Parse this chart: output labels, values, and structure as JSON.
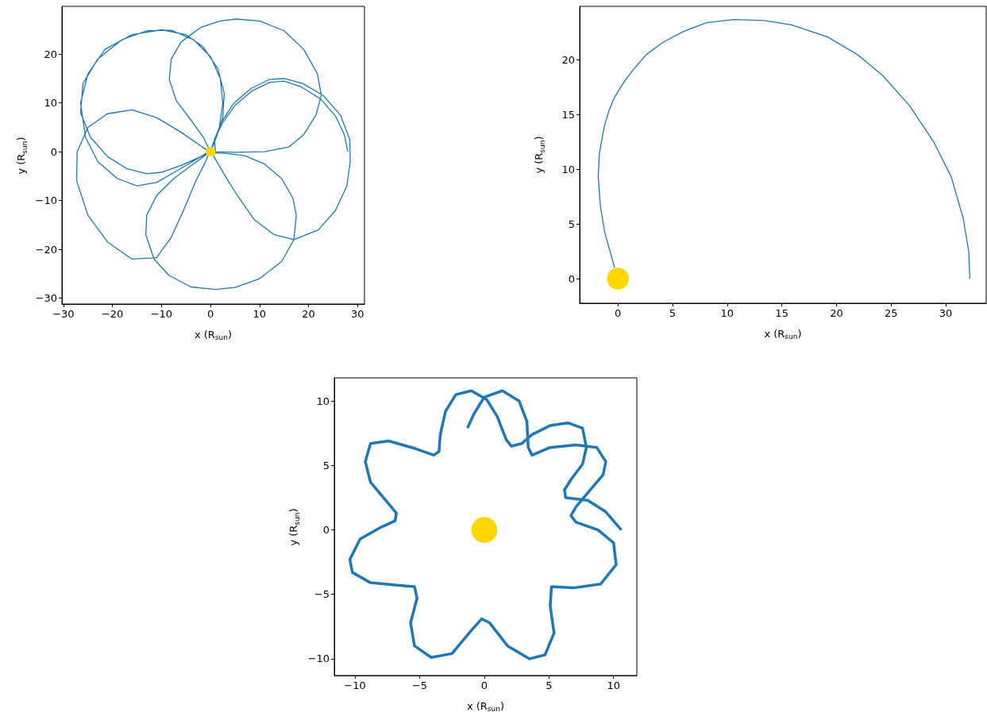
{
  "chart_data": [
    {
      "type": "line",
      "xlabel": "x (R$_{sun}$)",
      "ylabel": "y (R$_{sun}$)",
      "xlim": [
        -30.3,
        31.4
      ],
      "ylim": [
        -31.2,
        29.8
      ],
      "xticks": [
        {
          "value": -30,
          "label": "−30"
        },
        {
          "value": -20,
          "label": "−20"
        },
        {
          "value": -10,
          "label": "−10"
        },
        0,
        10,
        20,
        30
      ],
      "yticks": [
        {
          "value": -30,
          "label": "−30"
        },
        {
          "value": -20,
          "label": "−20"
        },
        {
          "value": -10,
          "label": "−10"
        },
        0,
        10,
        20
      ],
      "series": [
        {
          "type": "line",
          "color": "#1f77b4",
          "x": [
            0,
            0.3,
            1,
            2.3,
            4.8,
            8.3,
            12,
            15,
            18.8,
            23,
            26.5,
            28.4,
            28.5,
            27.8,
            25.5,
            22,
            17,
            13,
            9,
            5.5,
            3,
            1,
            0.2,
            3,
            7,
            11,
            14.5,
            16.8,
            17.5,
            17,
            14.5,
            10,
            5,
            1,
            -4,
            -8.5,
            -11.5,
            -13.2,
            -13,
            -11,
            -7.5,
            -3.5,
            -0.3,
            -1,
            -3,
            -5.5,
            -8,
            -11,
            -16,
            -21,
            -25,
            -27.3,
            -27.2,
            -25,
            -21,
            -16,
            -11,
            -6,
            -2,
            -0.3,
            -2,
            -6,
            -10,
            -13,
            -17,
            -21,
            -24.5,
            -26.5,
            -26,
            -23,
            -18,
            -13,
            -8,
            -3.5,
            0,
            2,
            2.5,
            1.8,
            0.6,
            0,
            -2.5,
            -7,
            -11,
            -15,
            -19,
            -23,
            -25.5,
            -26.5,
            -25,
            -21.5,
            -16,
            -10,
            -5,
            -1.5,
            1.5,
            2.8,
            2.5,
            1.2,
            0,
            -1.5,
            -4,
            -7,
            -8.4,
            -8,
            -6,
            -2,
            2,
            5.2,
            10,
            15,
            19,
            21.8,
            22.6,
            21.5,
            19,
            16,
            11,
            5,
            1,
            0.8,
            2.5,
            5,
            8.5,
            12,
            15,
            18.5,
            22.5,
            25.5,
            27.3,
            28
          ],
          "values": [
            0,
            1,
            3,
            6.2,
            10,
            13,
            14.8,
            15,
            14,
            11.5,
            7.5,
            2.5,
            -2,
            -7,
            -12,
            -16,
            -18,
            -17,
            -14,
            -9,
            -5,
            -1.5,
            -0.2,
            -0.3,
            -0.8,
            -2.5,
            -5.5,
            -9.5,
            -13,
            -18,
            -22.5,
            -26,
            -27.8,
            -28.2,
            -27.7,
            -25.3,
            -22,
            -17,
            -13,
            -9,
            -5.5,
            -2.5,
            -0.2,
            -2,
            -6,
            -12,
            -17.5,
            -21.7,
            -22,
            -18.5,
            -13,
            -6,
            0,
            5,
            7.8,
            8.6,
            7,
            4,
            1.2,
            0.1,
            -1,
            -2.8,
            -4.2,
            -4.5,
            -3.5,
            -1,
            3,
            8,
            14,
            19,
            23,
            24.8,
            24.9,
            23,
            19.5,
            15,
            10,
            5,
            1.5,
            0,
            -1.3,
            -4,
            -6.3,
            -7,
            -5.5,
            -2,
            3,
            10,
            16,
            21,
            24,
            25,
            24,
            21.5,
            17,
            12,
            7,
            3,
            0,
            3,
            6.5,
            10.5,
            14.8,
            19,
            22.5,
            25.5,
            26.8,
            27.2,
            26.8,
            24.8,
            21,
            16,
            11.6,
            7.5,
            3.5,
            1,
            0,
            -0.1,
            0,
            2.5,
            6,
            9.5,
            12.5,
            14.2,
            14.5,
            13.3,
            10.8,
            7.3,
            3.5,
            0
          ]
        },
        {
          "type": "scatter",
          "color": "#ffd700",
          "marker": "circle",
          "x": [
            0
          ],
          "values": [
            0
          ]
        }
      ]
    },
    {
      "type": "line",
      "xlabel": "x (R$_{sun}$)",
      "ylabel": "y (R$_{sun}$)",
      "xlim": [
        -3.5,
        33.7
      ],
      "ylim": [
        -2.25,
        24.9
      ],
      "xticks": [
        0,
        5,
        10,
        15,
        20,
        25,
        30
      ],
      "yticks": [
        0,
        5,
        10,
        15,
        20
      ],
      "series": [
        {
          "type": "line",
          "color": "#1f77b4",
          "x": [
            -0.3,
            -1.2,
            -1.6,
            -1.8,
            -1.7,
            -1.4,
            -1.2,
            -0.8,
            -0.3,
            0.5,
            1.4,
            2.6,
            4.1,
            6,
            8.1,
            10.6,
            13.4,
            15.9,
            19.2,
            21.9,
            24.2,
            26.7,
            28.9,
            30.5,
            31.6,
            32.1,
            32.2
          ],
          "values": [
            1,
            4.2,
            6.6,
            9.3,
            11.4,
            13.1,
            14.1,
            15.4,
            16.6,
            17.9,
            19.1,
            20.5,
            21.6,
            22.6,
            23.4,
            23.7,
            23.6,
            23.2,
            22.1,
            20.5,
            18.6,
            15.8,
            12.5,
            9.3,
            5.5,
            2.5,
            0
          ]
        },
        {
          "type": "scatter",
          "color": "#ffd700",
          "marker": "circle",
          "x": [
            0
          ],
          "values": [
            0
          ]
        }
      ]
    },
    {
      "type": "line",
      "xlabel": "x (R$_{sun}$)",
      "ylabel": "y (R$_{sun}$)",
      "xlim": [
        -11.6,
        11.8
      ],
      "ylim": [
        -11.3,
        11.8
      ],
      "xticks": [
        {
          "value": -10,
          "label": "−10"
        },
        {
          "value": -5,
          "label": "−5"
        },
        0,
        5,
        10
      ],
      "yticks": [
        {
          "value": -10,
          "label": "−10"
        },
        {
          "value": -5,
          "label": "−5"
        },
        0,
        5,
        10
      ],
      "series": [
        {
          "type": "line",
          "color": "#1f77b4",
          "x": [
            10.6,
            9.4,
            8,
            6.3,
            6.2,
            6.7,
            7.6,
            7.9,
            7.6,
            6.5,
            5.1,
            3.7,
            2.9,
            2.1,
            1.7,
            1,
            0.2,
            -1,
            -2.2,
            -3,
            -3.4,
            -3.5,
            -3.9,
            -5.3,
            -7.4,
            -8.8,
            -9.2,
            -8.8,
            -7.8,
            -6.8,
            -6.9,
            -8,
            -9.6,
            -10.4,
            -10.2,
            -8.8,
            -6.7,
            -5.4,
            -5.2,
            -5.7,
            -5.4,
            -4.1,
            -2.5,
            -1,
            -0.2,
            0.4,
            1.8,
            3.5,
            4.7,
            5.4,
            5.1,
            5.2,
            6.9,
            9,
            10.2,
            10,
            8.8,
            7.1,
            6.7,
            7.1,
            8.2,
            9.2,
            9.4,
            8.7,
            7.1,
            5.1,
            3.7,
            3.4,
            3.3,
            2.7,
            1.4,
            0,
            -0.8,
            -1.3
          ],
          "values": [
            0,
            1.4,
            2.3,
            2.5,
            3.1,
            3.9,
            5.1,
            6.4,
            7.9,
            8.3,
            8.1,
            7.4,
            6.7,
            6.5,
            7,
            8.8,
            10.1,
            10.8,
            10.5,
            9.2,
            7.4,
            6.1,
            5.8,
            6.3,
            6.9,
            6.7,
            5.3,
            3.7,
            2.5,
            1.3,
            0.7,
            0.2,
            -0.7,
            -2.3,
            -3.3,
            -4.1,
            -4.3,
            -4.4,
            -5.3,
            -7.2,
            -9,
            -9.9,
            -9.6,
            -7.8,
            -6.9,
            -7.2,
            -9,
            -10,
            -9.7,
            -8,
            -5.9,
            -4.4,
            -4.5,
            -4.2,
            -2.7,
            -1,
            0,
            0.6,
            1.1,
            1.8,
            3.1,
            4.3,
            5.3,
            6.4,
            6.6,
            6.4,
            5.8,
            6.4,
            8.4,
            10,
            10.8,
            10.3,
            9,
            7.9
          ]
        },
        {
          "type": "scatter",
          "color": "#ffd700",
          "marker": "circle",
          "x": [
            0
          ],
          "values": [
            0
          ]
        }
      ]
    }
  ]
}
